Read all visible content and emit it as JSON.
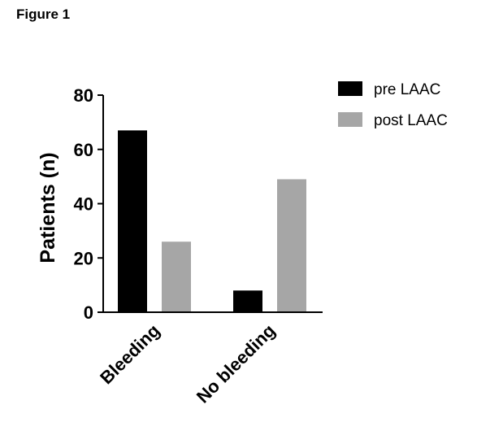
{
  "figure_label": "Figure 1",
  "chart_data": {
    "type": "bar",
    "categories": [
      "Bleeding",
      "No bleeding"
    ],
    "series": [
      {
        "name": "pre LAAC",
        "values": [
          67,
          8
        ],
        "color": "#000000"
      },
      {
        "name": "post LAAC",
        "values": [
          26,
          49
        ],
        "color": "#a6a6a6"
      }
    ],
    "ylabel": "Patients (n)",
    "xlabel": "",
    "ylim": [
      0,
      80
    ],
    "yticks": [
      0,
      20,
      40,
      60,
      80
    ],
    "legend": "top-right",
    "grid": false
  }
}
